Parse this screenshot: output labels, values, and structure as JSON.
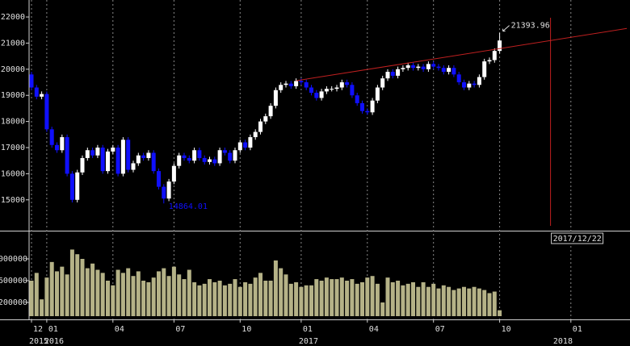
{
  "chart_data": {
    "type": "candlestick",
    "categories": [
      "12",
      null,
      null,
      "01",
      null,
      null,
      null,
      null,
      null,
      null,
      null,
      null,
      null,
      null,
      null,
      null,
      "04",
      null,
      null,
      null,
      null,
      null,
      null,
      null,
      null,
      null,
      null,
      null,
      "07",
      null,
      null,
      null,
      null,
      null,
      null,
      null,
      null,
      null,
      null,
      null,
      null,
      "10",
      null,
      null,
      null,
      null,
      null,
      null,
      null,
      null,
      null,
      null,
      null,
      "01",
      null,
      null,
      null,
      null,
      null,
      null,
      null,
      null,
      null,
      null,
      null,
      null,
      "04",
      null,
      null,
      null,
      null,
      null,
      null,
      null,
      null,
      null,
      null,
      null,
      null,
      "07",
      null,
      null,
      null,
      null,
      null,
      null,
      null,
      null,
      null,
      null,
      null,
      null,
      "10",
      null,
      null,
      null,
      null,
      null,
      null,
      null,
      null,
      null,
      null,
      null,
      null,
      null,
      "01",
      null,
      null,
      null,
      null,
      null,
      null,
      null,
      null,
      null,
      null,
      null
    ],
    "years": [
      "2015",
      null,
      null,
      "2016",
      null,
      null,
      null,
      null,
      null,
      null,
      null,
      null,
      null,
      null,
      null,
      null,
      null,
      null,
      null,
      null,
      null,
      null,
      null,
      null,
      null,
      null,
      null,
      null,
      null,
      null,
      null,
      null,
      null,
      null,
      null,
      null,
      null,
      null,
      null,
      null,
      null,
      null,
      null,
      null,
      null,
      null,
      null,
      null,
      null,
      null,
      null,
      null,
      null,
      "2017",
      null,
      null,
      null,
      null,
      null,
      null,
      null,
      null,
      null,
      null,
      null,
      null,
      null,
      null,
      null,
      null,
      null,
      null,
      null,
      null,
      null,
      null,
      null,
      null,
      null,
      null,
      null,
      null,
      null,
      null,
      null,
      null,
      null,
      null,
      null,
      null,
      null,
      null,
      null,
      null,
      null,
      null,
      null,
      null,
      null,
      null,
      null,
      null,
      null,
      "2018",
      null,
      null,
      null,
      null,
      null,
      null,
      null,
      null,
      null,
      null,
      null
    ],
    "open": [
      19800,
      19300,
      18950,
      19050,
      17700,
      17100,
      16900,
      17400,
      16000,
      15000,
      16050,
      16600,
      16900,
      16700,
      17000,
      16100,
      16850,
      17000,
      16000,
      17300,
      16150,
      16400,
      16700,
      16600,
      16800,
      16100,
      15500,
      15050,
      15700,
      16300,
      16700,
      16600,
      16500,
      16900,
      16600,
      16450,
      16550,
      16400,
      16900,
      16800,
      16500,
      16900,
      17200,
      17000,
      17400,
      17600,
      18000,
      18200,
      18600,
      19200,
      19400,
      19450,
      19350,
      19550,
      19500,
      19300,
      19100,
      18900,
      19150,
      19250,
      19250,
      19300,
      19500,
      19400,
      19000,
      18700,
      18400,
      18350,
      18800,
      19300,
      19650,
      19900,
      19750,
      20000,
      20050,
      20150,
      20050,
      20100,
      20000,
      20200,
      20100,
      20050,
      19900,
      20050,
      19800,
      19500,
      19300,
      19450,
      19400,
      19700,
      20300,
      20350,
      20700,
      null,
      null,
      null,
      null,
      null,
      null,
      null,
      null,
      null,
      null,
      null,
      null,
      null,
      null,
      null,
      null,
      null,
      null,
      null,
      null,
      null,
      null,
      null,
      null,
      null
    ],
    "high": [
      19900,
      19400,
      19150,
      19150,
      17800,
      17200,
      17500,
      17500,
      16100,
      16150,
      16700,
      17000,
      17000,
      17100,
      17100,
      16950,
      17100,
      17100,
      17400,
      17400,
      16500,
      16800,
      16800,
      16900,
      16900,
      16200,
      15600,
      15800,
      16400,
      16800,
      16800,
      16700,
      17000,
      17000,
      16700,
      16650,
      16650,
      17000,
      17000,
      16900,
      17000,
      17300,
      17300,
      17500,
      17700,
      18100,
      18300,
      18700,
      19300,
      19500,
      19550,
      19550,
      19650,
      19650,
      19600,
      19400,
      19200,
      19250,
      19350,
      19350,
      19400,
      19600,
      19600,
      19500,
      19100,
      18800,
      18500,
      18900,
      19400,
      19750,
      20000,
      20000,
      20100,
      20150,
      20250,
      20250,
      20200,
      20200,
      20300,
      20300,
      20200,
      20150,
      20150,
      20150,
      19900,
      19600,
      19550,
      19550,
      19800,
      20400,
      20450,
      20800,
      21393.96,
      null,
      null,
      null,
      null,
      null,
      null,
      null,
      null,
      null,
      null,
      null,
      null,
      null,
      null,
      null,
      null,
      null,
      null,
      null,
      null,
      null,
      null,
      null,
      null,
      null
    ],
    "low": [
      19200,
      18850,
      18850,
      17600,
      17000,
      16800,
      16800,
      15900,
      14900,
      14900,
      15950,
      16500,
      16600,
      16600,
      16000,
      16000,
      16750,
      15900,
      15900,
      16050,
      16050,
      16300,
      16500,
      16500,
      16000,
      15400,
      14864.01,
      14950,
      15600,
      16200,
      16500,
      16400,
      16400,
      16500,
      16350,
      16350,
      16300,
      16300,
      16700,
      16400,
      16400,
      16800,
      16900,
      16900,
      17300,
      17500,
      17900,
      18100,
      18500,
      19100,
      19300,
      19250,
      19250,
      19400,
      19200,
      19000,
      18800,
      18800,
      19050,
      19150,
      19150,
      19200,
      19300,
      18900,
      18600,
      18300,
      18250,
      18250,
      18700,
      19200,
      19550,
      19650,
      19650,
      19900,
      19950,
      19950,
      19950,
      19900,
      19900,
      20000,
      19950,
      19800,
      19800,
      19700,
      19400,
      19200,
      19200,
      19300,
      19300,
      19600,
      20200,
      20250,
      20600,
      null,
      null,
      null,
      null,
      null,
      null,
      null,
      null,
      null,
      null,
      null,
      null,
      null,
      null,
      null,
      null,
      null,
      null,
      null,
      null,
      null,
      null,
      null,
      null,
      null
    ],
    "close": [
      19300,
      18950,
      19050,
      17700,
      17100,
      16900,
      17400,
      16000,
      15000,
      16050,
      16600,
      16900,
      16700,
      17000,
      16100,
      16850,
      17000,
      16000,
      17300,
      16150,
      16400,
      16700,
      16600,
      16800,
      16100,
      15500,
      15050,
      15700,
      16300,
      16700,
      16600,
      16500,
      16900,
      16600,
      16450,
      16550,
      16400,
      16900,
      16800,
      16500,
      16900,
      17200,
      17000,
      17400,
      17600,
      18000,
      18200,
      18600,
      19200,
      19400,
      19450,
      19350,
      19550,
      19500,
      19300,
      19100,
      18900,
      19150,
      19250,
      19250,
      19300,
      19500,
      19400,
      19000,
      18700,
      18400,
      18350,
      18800,
      19300,
      19650,
      19900,
      19750,
      20000,
      20050,
      20150,
      20050,
      20100,
      20000,
      20200,
      20100,
      20050,
      19900,
      20050,
      19800,
      19500,
      19300,
      19450,
      19400,
      19700,
      20300,
      20350,
      20700,
      21100,
      null,
      null,
      null,
      null,
      null,
      null,
      null,
      null,
      null,
      null,
      null,
      null,
      null,
      null,
      null,
      null,
      null,
      null,
      null,
      null,
      null,
      null,
      null,
      null,
      null
    ],
    "volume": [
      3600000,
      4100000,
      2400000,
      3800000,
      4800000,
      4200000,
      4500000,
      4000000,
      5600000,
      5300000,
      5000000,
      4400000,
      4700000,
      4300000,
      4100000,
      3600000,
      3300000,
      4300000,
      4100000,
      4400000,
      3900000,
      4200000,
      3600000,
      3500000,
      3800000,
      4200000,
      4400000,
      3900000,
      4500000,
      4000000,
      3700000,
      4300000,
      3500000,
      3300000,
      3400000,
      3700000,
      3500000,
      3600000,
      3300000,
      3400000,
      3700000,
      3200000,
      3500000,
      3400000,
      3800000,
      4100000,
      3600000,
      3600000,
      4900000,
      4400000,
      4000000,
      3400000,
      3500000,
      3200000,
      3300000,
      3300000,
      3700000,
      3600000,
      3800000,
      3700000,
      3700000,
      3800000,
      3600000,
      3700000,
      3400000,
      3500000,
      3800000,
      3900000,
      3400000,
      2200000,
      3800000,
      3500000,
      3600000,
      3300000,
      3400000,
      3500000,
      3200000,
      3500000,
      3200000,
      3400000,
      3100000,
      3300000,
      3200000,
      3000000,
      3100000,
      3200000,
      3100000,
      3200000,
      3100000,
      3000000,
      2800000,
      2900000,
      1700000,
      null,
      null,
      null,
      null,
      null,
      null,
      null,
      null,
      null,
      null,
      null,
      null,
      null,
      null,
      null,
      null,
      null,
      null,
      null,
      null,
      null,
      null,
      null,
      null,
      null
    ],
    "ylim": [
      13820,
      22650
    ],
    "yticks": [
      15000,
      16000,
      17000,
      18000,
      19000,
      20000,
      21000,
      22000
    ],
    "volume_ylim": [
      1320000,
      6710000
    ],
    "volume_yticks": [
      {
        "value": 5000000,
        "label": "000000"
      },
      {
        "value": 3600000,
        "label": "600000"
      },
      {
        "value": 2200000,
        "label": "200000"
      }
    ],
    "up_color": "#ffffff",
    "down_color": "#1010ff",
    "volume_color": "#b5b287",
    "grid": true,
    "trendline": {
      "x": [
        52,
        117
      ],
      "y": [
        19560,
        21560
      ],
      "color": "#c02020"
    },
    "cursor_label": "2017/12/22",
    "cursor_index": 102,
    "cursor_color": "#c02020"
  }
}
